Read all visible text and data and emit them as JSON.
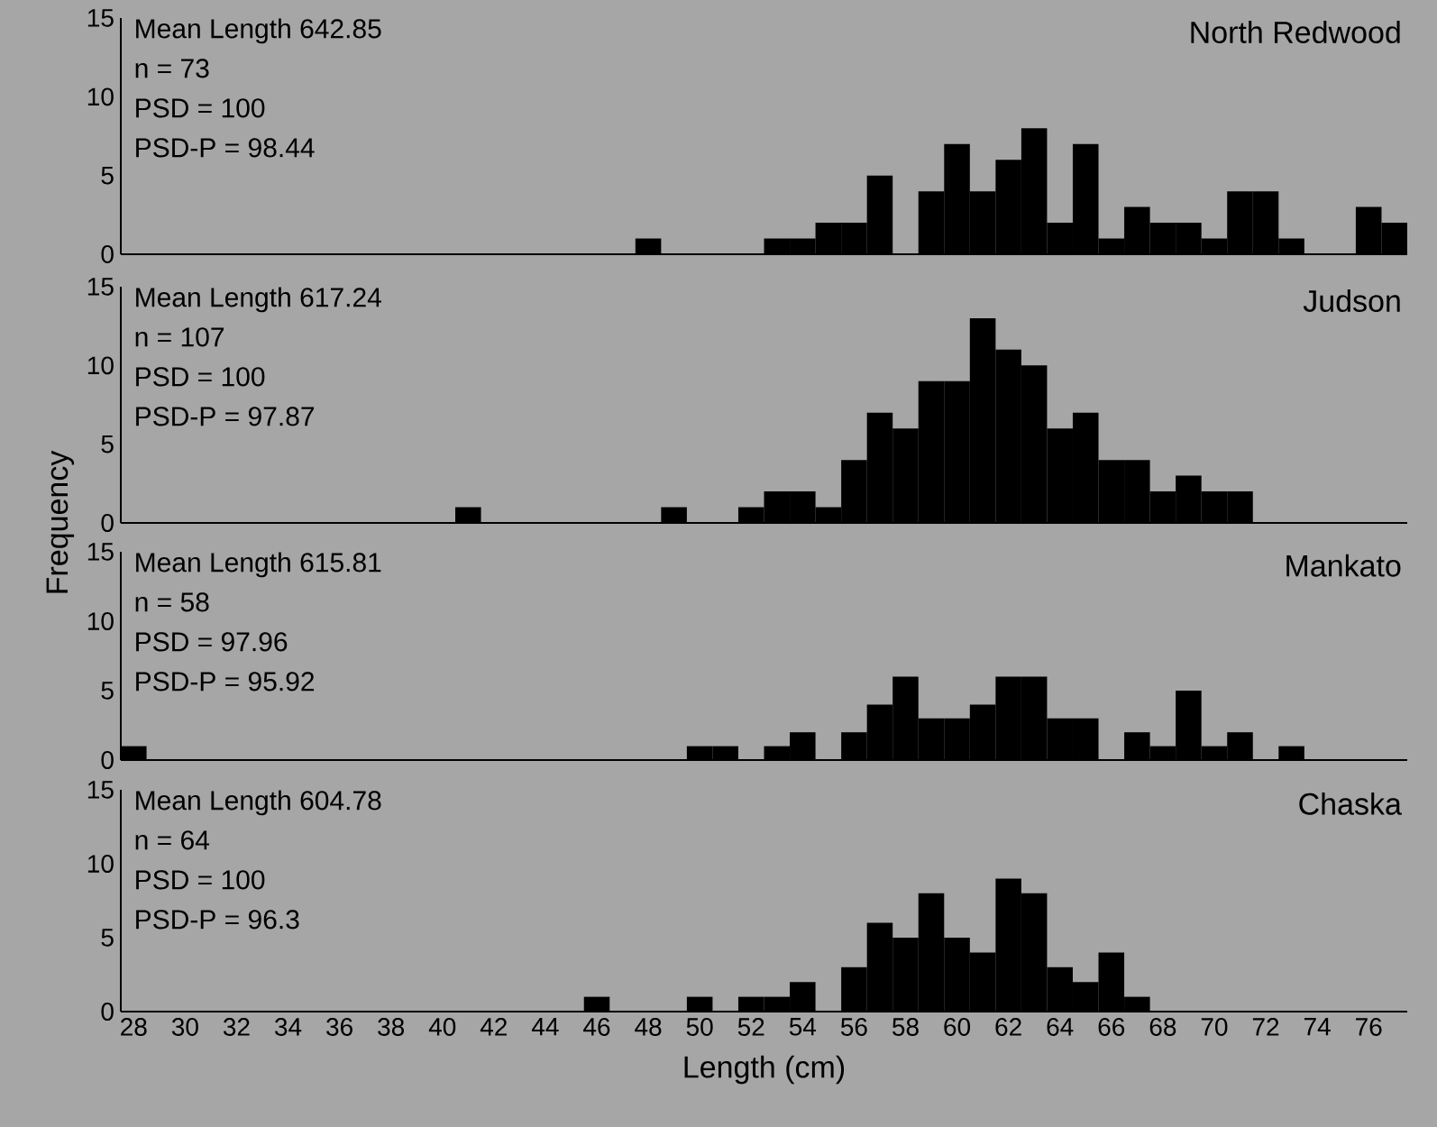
{
  "chart_data": [
    {
      "type": "histogram",
      "title": "North Redwood",
      "annotations": [
        "Mean Length 642.85",
        "n = 73",
        "PSD = 100",
        "PSD-P = 98.44"
      ],
      "bins": [
        27.5,
        28.5,
        29.5,
        30.5,
        31.5,
        32.5,
        33.5,
        34.5,
        35.5,
        36.5,
        37.5,
        38.5,
        39.5,
        40.5,
        41.5,
        42.5,
        43.5,
        44.5,
        45.5,
        46.5,
        47.5,
        48.5,
        49.5,
        50.5,
        51.5,
        52.5,
        53.5,
        54.5,
        55.5,
        56.5,
        57.5,
        58.5,
        59.5,
        60.5,
        61.5,
        62.5,
        63.5,
        64.5,
        65.5,
        66.5,
        67.5,
        68.5,
        69.5,
        70.5,
        71.5,
        72.5,
        73.5,
        74.5,
        75.5,
        76.5,
        77.5
      ],
      "values": [
        0,
        0,
        0,
        0,
        0,
        0,
        0,
        0,
        0,
        0,
        0,
        0,
        0,
        0,
        0,
        0,
        0,
        0,
        0,
        0,
        1,
        0,
        0,
        0,
        0,
        1,
        1,
        2,
        2,
        5,
        0,
        4,
        7,
        4,
        6,
        8,
        2,
        7,
        1,
        3,
        2,
        2,
        1,
        4,
        4,
        1,
        0,
        0,
        3,
        2
      ],
      "color": "#000000",
      "xlim": [
        27.5,
        77.5
      ],
      "ylim": [
        0,
        15
      ],
      "yticks": [
        0,
        5,
        10,
        15
      ],
      "tick_labels": "y"
    },
    {
      "type": "histogram",
      "title": "Judson",
      "ylabel": "Frequency",
      "annotations": [
        "Mean Length 617.24",
        "n = 107",
        "PSD = 100",
        "PSD-P = 97.87"
      ],
      "bins": [
        27.5,
        28.5,
        29.5,
        30.5,
        31.5,
        32.5,
        33.5,
        34.5,
        35.5,
        36.5,
        37.5,
        38.5,
        39.5,
        40.5,
        41.5,
        42.5,
        43.5,
        44.5,
        45.5,
        46.5,
        47.5,
        48.5,
        49.5,
        50.5,
        51.5,
        52.5,
        53.5,
        54.5,
        55.5,
        56.5,
        57.5,
        58.5,
        59.5,
        60.5,
        61.5,
        62.5,
        63.5,
        64.5,
        65.5,
        66.5,
        67.5,
        68.5,
        69.5,
        70.5,
        71.5,
        72.5,
        73.5,
        74.5,
        75.5,
        76.5,
        77.5
      ],
      "values": [
        0,
        0,
        0,
        0,
        0,
        0,
        0,
        0,
        0,
        0,
        0,
        0,
        0,
        1,
        0,
        0,
        0,
        0,
        0,
        0,
        0,
        1,
        0,
        0,
        1,
        2,
        2,
        1,
        4,
        7,
        6,
        9,
        9,
        13,
        11,
        10,
        6,
        7,
        4,
        4,
        2,
        3,
        2,
        2,
        0,
        0,
        0,
        0,
        0,
        0
      ],
      "color": "#000000",
      "xlim": [
        27.5,
        77.5
      ],
      "ylim": [
        0,
        15
      ],
      "yticks": [
        0,
        5,
        10,
        15
      ],
      "tick_labels": "y"
    },
    {
      "type": "histogram",
      "title": "Mankato",
      "annotations": [
        "Mean Length 615.81",
        "n = 58",
        "PSD = 97.96",
        "PSD-P = 95.92"
      ],
      "bins": [
        27.5,
        28.5,
        29.5,
        30.5,
        31.5,
        32.5,
        33.5,
        34.5,
        35.5,
        36.5,
        37.5,
        38.5,
        39.5,
        40.5,
        41.5,
        42.5,
        43.5,
        44.5,
        45.5,
        46.5,
        47.5,
        48.5,
        49.5,
        50.5,
        51.5,
        52.5,
        53.5,
        54.5,
        55.5,
        56.5,
        57.5,
        58.5,
        59.5,
        60.5,
        61.5,
        62.5,
        63.5,
        64.5,
        65.5,
        66.5,
        67.5,
        68.5,
        69.5,
        70.5,
        71.5,
        72.5,
        73.5,
        74.5,
        75.5,
        76.5,
        77.5
      ],
      "values": [
        1,
        0,
        0,
        0,
        0,
        0,
        0,
        0,
        0,
        0,
        0,
        0,
        0,
        0,
        0,
        0,
        0,
        0,
        0,
        0,
        0,
        0,
        1,
        1,
        0,
        1,
        2,
        0,
        2,
        4,
        6,
        3,
        3,
        4,
        6,
        6,
        3,
        3,
        0,
        2,
        1,
        5,
        1,
        2,
        0,
        1,
        0,
        0,
        0,
        0
      ],
      "color": "#000000",
      "xlim": [
        27.5,
        77.5
      ],
      "ylim": [
        0,
        15
      ],
      "yticks": [
        0,
        5,
        10,
        15
      ],
      "tick_labels": "y"
    },
    {
      "type": "histogram",
      "title": "Chaska",
      "xlabel": "Length (cm)",
      "annotations": [
        "Mean Length 604.78",
        "n = 64",
        "PSD = 100",
        "PSD-P = 96.3"
      ],
      "bins": [
        27.5,
        28.5,
        29.5,
        30.5,
        31.5,
        32.5,
        33.5,
        34.5,
        35.5,
        36.5,
        37.5,
        38.5,
        39.5,
        40.5,
        41.5,
        42.5,
        43.5,
        44.5,
        45.5,
        46.5,
        47.5,
        48.5,
        49.5,
        50.5,
        51.5,
        52.5,
        53.5,
        54.5,
        55.5,
        56.5,
        57.5,
        58.5,
        59.5,
        60.5,
        61.5,
        62.5,
        63.5,
        64.5,
        65.5,
        66.5,
        67.5,
        68.5,
        69.5,
        70.5,
        71.5,
        72.5,
        73.5,
        74.5,
        75.5,
        76.5,
        77.5
      ],
      "values": [
        0,
        0,
        0,
        0,
        0,
        0,
        0,
        0,
        0,
        0,
        0,
        0,
        0,
        0,
        0,
        0,
        0,
        0,
        1,
        0,
        0,
        0,
        1,
        0,
        1,
        1,
        2,
        0,
        3,
        6,
        5,
        8,
        5,
        4,
        9,
        8,
        3,
        2,
        4,
        1,
        0,
        0,
        0,
        0,
        0,
        0,
        0,
        0,
        0,
        0
      ],
      "color": "#000000",
      "xlim": [
        27.5,
        77.5
      ],
      "xticks": [
        28,
        30,
        32,
        34,
        36,
        38,
        40,
        42,
        44,
        46,
        48,
        50,
        52,
        54,
        56,
        58,
        60,
        62,
        64,
        66,
        68,
        70,
        72,
        74,
        76
      ],
      "ylim": [
        0,
        15
      ],
      "yticks": [
        0,
        5,
        10,
        15
      ]
    }
  ]
}
